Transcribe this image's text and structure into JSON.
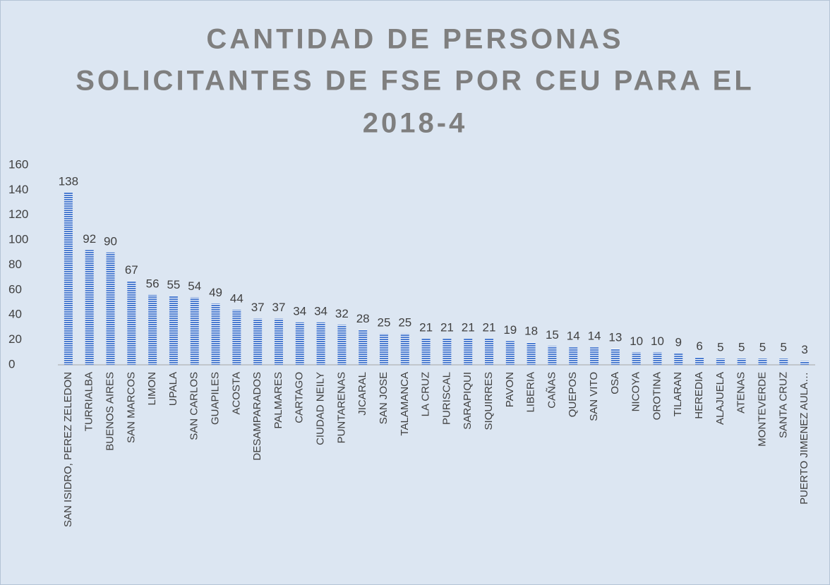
{
  "chart_data": {
    "type": "bar",
    "title": [
      "CANTIDAD  DE PERSONAS",
      "SOLICITANTES DE FSE POR CEU PARA EL",
      "2018-4"
    ],
    "categories": [
      "SAN ISIDRO, PEREZ ZELEDON",
      "TURRIALBA",
      "BUENOS AIRES",
      "SAN MARCOS",
      "LIMON",
      "UPALA",
      "SAN CARLOS",
      "GUAPILES",
      "ACOSTA",
      "DESAMPARADOS",
      "PALMARES",
      "CARTAGO",
      "CIUDAD NEILY",
      "PUNTARENAS",
      "JICARAL",
      "SAN JOSE",
      "TALAMANCA",
      "LA CRUZ",
      "PURISCAL",
      "SARAPIQUI",
      "SIQUIRRES",
      "PAVON",
      "LIBERIA",
      "CAÑAS",
      "QUEPOS",
      "SAN VITO",
      "OSA",
      "NICOYA",
      "OROTINA",
      "TILARAN",
      "HEREDIA",
      "ALAJUELA",
      "ATENAS",
      "MONTEVERDE",
      "SANTA CRUZ",
      "PUERTO JIMENEZ AULA…"
    ],
    "values": [
      138,
      92,
      90,
      67,
      56,
      55,
      54,
      49,
      44,
      37,
      37,
      34,
      34,
      32,
      28,
      25,
      25,
      21,
      21,
      21,
      21,
      19,
      18,
      15,
      14,
      14,
      13,
      10,
      10,
      9,
      6,
      5,
      5,
      5,
      5,
      3
    ],
    "color": "#4a7bd0",
    "ylim": [
      0,
      160
    ],
    "yticks": [
      0,
      20,
      40,
      60,
      80,
      100,
      120,
      140,
      160
    ],
    "grid": false
  }
}
